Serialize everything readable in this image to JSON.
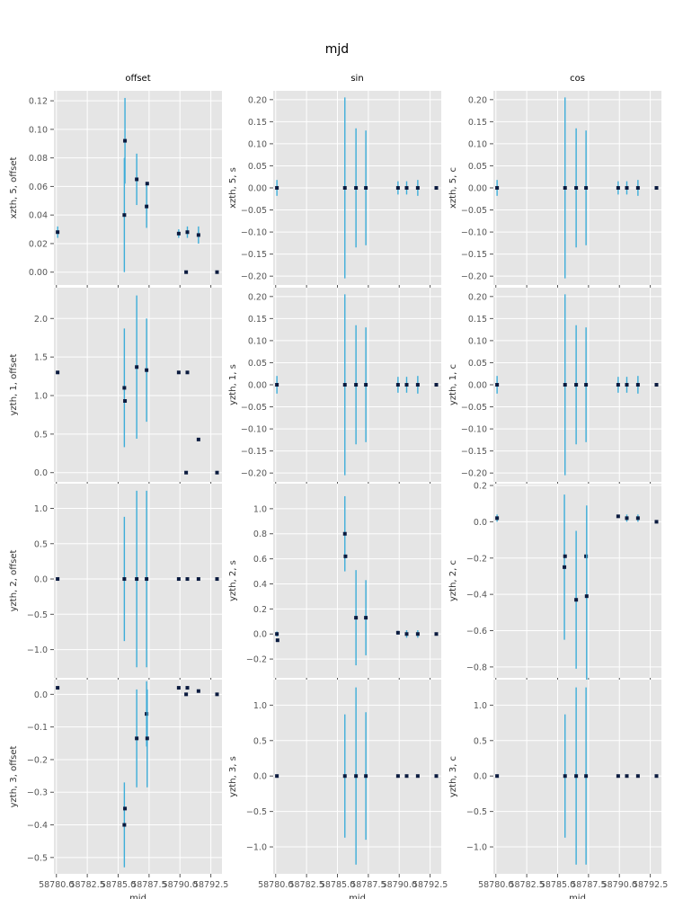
{
  "suptitle": "mjd",
  "column_titles": [
    "offset",
    "sin",
    "cos"
  ],
  "colors": {
    "panel_bg": "#E5E5E5",
    "grid": "#FFFFFF",
    "errorbar": "#3DADD9",
    "marker": "#0B1B3F",
    "tick_text": "#555555"
  },
  "chart_data": [
    {
      "type": "scatter",
      "title": "offset",
      "xlabel": "",
      "ylabel": "xzth, 5, offset",
      "xlim": [
        58779.8,
        58793.4
      ],
      "ylim": [
        -0.009,
        0.127
      ],
      "xticks": [
        58780,
        58782.5,
        58785,
        58787.5,
        58790,
        58792.5
      ],
      "xticklabels": [],
      "yticks": [
        0.0,
        0.02,
        0.04,
        0.06,
        0.08,
        0.1,
        0.12
      ],
      "yticklabels": [
        "0.00",
        "0.02",
        "0.04",
        "0.06",
        "0.08",
        "0.10",
        "0.12"
      ],
      "points": [
        {
          "x": 58780.1,
          "y": 0.028,
          "yerr": 0.004
        },
        {
          "x": 58785.5,
          "y": 0.04,
          "yerr": 0.04
        },
        {
          "x": 58785.55,
          "y": 0.092,
          "yerr": 0.03
        },
        {
          "x": 58786.5,
          "y": 0.065,
          "yerr": 0.018
        },
        {
          "x": 58787.3,
          "y": 0.046,
          "yerr": 0.015
        },
        {
          "x": 58787.35,
          "y": 0.062,
          "yerr": 0.0
        },
        {
          "x": 58789.9,
          "y": 0.027,
          "yerr": 0.003
        },
        {
          "x": 58790.6,
          "y": 0.028,
          "yerr": 0.004
        },
        {
          "x": 58790.5,
          "y": 0.0,
          "yerr": 0.0
        },
        {
          "x": 58791.5,
          "y": 0.026,
          "yerr": 0.006
        },
        {
          "x": 58793.0,
          "y": 0.0,
          "yerr": 0.0
        }
      ]
    },
    {
      "type": "scatter",
      "title": "sin",
      "xlabel": "",
      "ylabel": "xzth, 5, s",
      "xlim": [
        58779.8,
        58793.4
      ],
      "ylim": [
        -0.22,
        0.22
      ],
      "xticks": [
        58780,
        58782.5,
        58785,
        58787.5,
        58790,
        58792.5
      ],
      "xticklabels": [],
      "yticks": [
        -0.2,
        -0.15,
        -0.1,
        -0.05,
        0.0,
        0.05,
        0.1,
        0.15,
        0.2
      ],
      "yticklabels": [
        "−0.20",
        "−0.15",
        "−0.10",
        "−0.05",
        "0.00",
        "0.05",
        "0.10",
        "0.15",
        "0.20"
      ],
      "points": [
        {
          "x": 58780.1,
          "y": 0.0,
          "yerr": 0.018
        },
        {
          "x": 58785.6,
          "y": 0.0,
          "yerr": 0.205
        },
        {
          "x": 58786.5,
          "y": 0.0,
          "yerr": 0.135
        },
        {
          "x": 58787.3,
          "y": 0.0,
          "yerr": 0.13
        },
        {
          "x": 58789.9,
          "y": 0.0,
          "yerr": 0.015
        },
        {
          "x": 58790.6,
          "y": 0.0,
          "yerr": 0.015
        },
        {
          "x": 58791.5,
          "y": 0.0,
          "yerr": 0.018
        },
        {
          "x": 58793.0,
          "y": 0.0,
          "yerr": 0.0
        }
      ]
    },
    {
      "type": "scatter",
      "title": "cos",
      "xlabel": "",
      "ylabel": "xzth, 5, c",
      "xlim": [
        58779.8,
        58793.4
      ],
      "ylim": [
        -0.22,
        0.22
      ],
      "xticks": [
        58780,
        58782.5,
        58785,
        58787.5,
        58790,
        58792.5
      ],
      "xticklabels": [],
      "yticks": [
        -0.2,
        -0.15,
        -0.1,
        -0.05,
        0.0,
        0.05,
        0.1,
        0.15,
        0.2
      ],
      "yticklabels": [
        "−0.20",
        "−0.15",
        "−0.10",
        "−0.05",
        "0.00",
        "0.05",
        "0.10",
        "0.15",
        "0.20"
      ],
      "points": [
        {
          "x": 58780.1,
          "y": 0.0,
          "yerr": 0.018
        },
        {
          "x": 58785.6,
          "y": 0.0,
          "yerr": 0.205
        },
        {
          "x": 58786.5,
          "y": 0.0,
          "yerr": 0.135
        },
        {
          "x": 58787.3,
          "y": 0.0,
          "yerr": 0.13
        },
        {
          "x": 58789.9,
          "y": 0.0,
          "yerr": 0.015
        },
        {
          "x": 58790.6,
          "y": 0.0,
          "yerr": 0.015
        },
        {
          "x": 58791.5,
          "y": 0.0,
          "yerr": 0.018
        },
        {
          "x": 58793.0,
          "y": 0.0,
          "yerr": 0.0
        }
      ]
    },
    {
      "type": "scatter",
      "title": "",
      "xlabel": "",
      "ylabel": "yzth, 1, offset",
      "xlim": [
        58779.8,
        58793.4
      ],
      "ylim": [
        -0.12,
        2.4
      ],
      "xticks": [
        58780,
        58782.5,
        58785,
        58787.5,
        58790,
        58792.5
      ],
      "xticklabels": [],
      "yticks": [
        0.0,
        0.5,
        1.0,
        1.5,
        2.0
      ],
      "yticklabels": [
        "0.0",
        "0.5",
        "1.0",
        "1.5",
        "2.0"
      ],
      "points": [
        {
          "x": 58780.1,
          "y": 1.3,
          "yerr": 0.02
        },
        {
          "x": 58785.5,
          "y": 1.1,
          "yerr": 0.77
        },
        {
          "x": 58785.55,
          "y": 0.93,
          "yerr": 0.0
        },
        {
          "x": 58786.5,
          "y": 1.37,
          "yerr": 0.93
        },
        {
          "x": 58787.3,
          "y": 1.33,
          "yerr": 0.67
        },
        {
          "x": 58789.9,
          "y": 1.3,
          "yerr": 0.0
        },
        {
          "x": 58790.6,
          "y": 1.3,
          "yerr": 0.0
        },
        {
          "x": 58790.5,
          "y": 0.0,
          "yerr": 0.0
        },
        {
          "x": 58791.5,
          "y": 0.43,
          "yerr": 0.0
        },
        {
          "x": 58793.0,
          "y": 0.0,
          "yerr": 0.0
        }
      ]
    },
    {
      "type": "scatter",
      "title": "",
      "xlabel": "",
      "ylabel": "yzth, 1, s",
      "xlim": [
        58779.8,
        58793.4
      ],
      "ylim": [
        -0.22,
        0.22
      ],
      "xticks": [
        58780,
        58782.5,
        58785,
        58787.5,
        58790,
        58792.5
      ],
      "xticklabels": [],
      "yticks": [
        -0.2,
        -0.15,
        -0.1,
        -0.05,
        0.0,
        0.05,
        0.1,
        0.15,
        0.2
      ],
      "yticklabels": [
        "−0.20",
        "−0.15",
        "−0.10",
        "−0.05",
        "0.00",
        "0.05",
        "0.10",
        "0.15",
        "0.20"
      ],
      "points": [
        {
          "x": 58780.1,
          "y": 0.0,
          "yerr": 0.02
        },
        {
          "x": 58785.6,
          "y": 0.0,
          "yerr": 0.205
        },
        {
          "x": 58786.5,
          "y": 0.0,
          "yerr": 0.135
        },
        {
          "x": 58787.3,
          "y": 0.0,
          "yerr": 0.13
        },
        {
          "x": 58789.9,
          "y": 0.0,
          "yerr": 0.018
        },
        {
          "x": 58790.6,
          "y": 0.0,
          "yerr": 0.018
        },
        {
          "x": 58791.5,
          "y": 0.0,
          "yerr": 0.02
        },
        {
          "x": 58793.0,
          "y": 0.0,
          "yerr": 0.0
        }
      ]
    },
    {
      "type": "scatter",
      "title": "",
      "xlabel": "",
      "ylabel": "yzth, 1, c",
      "xlim": [
        58779.8,
        58793.4
      ],
      "ylim": [
        -0.22,
        0.22
      ],
      "xticks": [
        58780,
        58782.5,
        58785,
        58787.5,
        58790,
        58792.5
      ],
      "xticklabels": [],
      "yticks": [
        -0.2,
        -0.15,
        -0.1,
        -0.05,
        0.0,
        0.05,
        0.1,
        0.15,
        0.2
      ],
      "yticklabels": [
        "−0.20",
        "−0.15",
        "−0.10",
        "−0.05",
        "0.00",
        "0.05",
        "0.10",
        "0.15",
        "0.20"
      ],
      "points": [
        {
          "x": 58780.1,
          "y": 0.0,
          "yerr": 0.02
        },
        {
          "x": 58785.6,
          "y": 0.0,
          "yerr": 0.205
        },
        {
          "x": 58786.5,
          "y": 0.0,
          "yerr": 0.135
        },
        {
          "x": 58787.3,
          "y": 0.0,
          "yerr": 0.13
        },
        {
          "x": 58789.9,
          "y": 0.0,
          "yerr": 0.018
        },
        {
          "x": 58790.6,
          "y": 0.0,
          "yerr": 0.018
        },
        {
          "x": 58791.5,
          "y": 0.0,
          "yerr": 0.02
        },
        {
          "x": 58793.0,
          "y": 0.0,
          "yerr": 0.0
        }
      ]
    },
    {
      "type": "scatter",
      "title": "",
      "xlabel": "",
      "ylabel": "yzth, 2, offset",
      "xlim": [
        58779.8,
        58793.4
      ],
      "ylim": [
        -1.4,
        1.35
      ],
      "xticks": [
        58780,
        58782.5,
        58785,
        58787.5,
        58790,
        58792.5
      ],
      "xticklabels": [],
      "yticks": [
        -1.0,
        -0.5,
        0.0,
        0.5,
        1.0
      ],
      "yticklabels": [
        "−1.0",
        "−0.5",
        "0.0",
        "0.5",
        "1.0"
      ],
      "points": [
        {
          "x": 58780.1,
          "y": 0.0,
          "yerr": 0.0
        },
        {
          "x": 58785.5,
          "y": 0.0,
          "yerr": 0.88
        },
        {
          "x": 58786.5,
          "y": 0.0,
          "yerr": 1.25
        },
        {
          "x": 58787.3,
          "y": 0.0,
          "yerr": 1.25
        },
        {
          "x": 58789.9,
          "y": 0.0,
          "yerr": 0.0
        },
        {
          "x": 58790.6,
          "y": 0.0,
          "yerr": 0.0
        },
        {
          "x": 58791.5,
          "y": 0.0,
          "yerr": 0.0
        },
        {
          "x": 58793.0,
          "y": 0.0,
          "yerr": 0.0
        }
      ]
    },
    {
      "type": "scatter",
      "title": "",
      "xlabel": "",
      "ylabel": "yzth, 2, s",
      "xlim": [
        58779.8,
        58793.4
      ],
      "ylim": [
        -0.35,
        1.2
      ],
      "xticks": [
        58780,
        58782.5,
        58785,
        58787.5,
        58790,
        58792.5
      ],
      "xticklabels": [],
      "yticks": [
        -0.2,
        0.0,
        0.2,
        0.4,
        0.6,
        0.8,
        1.0
      ],
      "yticklabels": [
        "−0.2",
        "0.0",
        "0.2",
        "0.4",
        "0.6",
        "0.8",
        "1.0"
      ],
      "points": [
        {
          "x": 58780.1,
          "y": 0.0,
          "yerr": 0.02
        },
        {
          "x": 58780.15,
          "y": -0.05,
          "yerr": 0.0
        },
        {
          "x": 58785.6,
          "y": 0.8,
          "yerr": 0.3
        },
        {
          "x": 58785.65,
          "y": 0.62,
          "yerr": 0.0
        },
        {
          "x": 58786.5,
          "y": 0.13,
          "yerr": 0.38
        },
        {
          "x": 58787.3,
          "y": 0.13,
          "yerr": 0.3
        },
        {
          "x": 58789.9,
          "y": 0.01,
          "yerr": 0.015
        },
        {
          "x": 58790.6,
          "y": 0.0,
          "yerr": 0.03
        },
        {
          "x": 58791.5,
          "y": 0.0,
          "yerr": 0.03
        },
        {
          "x": 58793.0,
          "y": 0.0,
          "yerr": 0.0
        }
      ]
    },
    {
      "type": "scatter",
      "title": "",
      "xlabel": "",
      "ylabel": "yzth, 2, c",
      "xlim": [
        58779.8,
        58793.4
      ],
      "ylim": [
        -0.86,
        0.21
      ],
      "xticks": [
        58780,
        58782.5,
        58785,
        58787.5,
        58790,
        58792.5
      ],
      "xticklabels": [],
      "yticks": [
        -0.8,
        -0.6,
        -0.4,
        -0.2,
        0.0,
        0.2
      ],
      "yticklabels": [
        "−0.8",
        "−0.6",
        "−0.4",
        "−0.2",
        "0.0",
        "0.2"
      ],
      "points": [
        {
          "x": 58780.1,
          "y": 0.02,
          "yerr": 0.02
        },
        {
          "x": 58785.55,
          "y": -0.25,
          "yerr": 0.4
        },
        {
          "x": 58785.6,
          "y": -0.19,
          "yerr": 0.0
        },
        {
          "x": 58786.5,
          "y": -0.43,
          "yerr": 0.38
        },
        {
          "x": 58787.3,
          "y": -0.19,
          "yerr": 0.0
        },
        {
          "x": 58787.35,
          "y": -0.41,
          "yerr": 0.5
        },
        {
          "x": 58789.9,
          "y": 0.03,
          "yerr": 0.0
        },
        {
          "x": 58790.6,
          "y": 0.02,
          "yerr": 0.02
        },
        {
          "x": 58791.5,
          "y": 0.02,
          "yerr": 0.02
        },
        {
          "x": 58793.0,
          "y": 0.0,
          "yerr": 0.0
        }
      ]
    },
    {
      "type": "scatter",
      "title": "",
      "xlabel": "mjd",
      "ylabel": "yzth, 3, offset",
      "xlim": [
        58779.8,
        58793.4
      ],
      "ylim": [
        -0.55,
        0.045
      ],
      "xticks": [
        58780,
        58782.5,
        58785,
        58787.5,
        58790,
        58792.5
      ],
      "xticklabels": [
        "58780.0",
        "58782.5",
        "58785.0",
        "58787.5",
        "58790.0",
        "58792.5"
      ],
      "yticks": [
        -0.5,
        -0.4,
        -0.3,
        -0.2,
        -0.1,
        0.0
      ],
      "yticklabels": [
        "−0.5",
        "−0.4",
        "−0.3",
        "−0.2",
        "−0.1",
        "0.0"
      ],
      "points": [
        {
          "x": 58780.1,
          "y": 0.02,
          "yerr": 0.0
        },
        {
          "x": 58785.5,
          "y": -0.4,
          "yerr": 0.13
        },
        {
          "x": 58785.55,
          "y": -0.35,
          "yerr": 0.0
        },
        {
          "x": 58786.5,
          "y": -0.135,
          "yerr": 0.15
        },
        {
          "x": 58787.3,
          "y": -0.06,
          "yerr": 0.1
        },
        {
          "x": 58787.35,
          "y": -0.135,
          "yerr": 0.15
        },
        {
          "x": 58789.9,
          "y": 0.02,
          "yerr": 0.0
        },
        {
          "x": 58790.6,
          "y": 0.02,
          "yerr": 0.0
        },
        {
          "x": 58790.5,
          "y": 0.0,
          "yerr": 0.0
        },
        {
          "x": 58791.5,
          "y": 0.01,
          "yerr": 0.0
        },
        {
          "x": 58793.0,
          "y": 0.0,
          "yerr": 0.0
        }
      ]
    },
    {
      "type": "scatter",
      "title": "",
      "xlabel": "mjd",
      "ylabel": "yzth, 3, s",
      "xlim": [
        58779.8,
        58793.4
      ],
      "ylim": [
        -1.38,
        1.36
      ],
      "xticks": [
        58780,
        58782.5,
        58785,
        58787.5,
        58790,
        58792.5
      ],
      "xticklabels": [
        "58780.0",
        "58782.5",
        "58785.0",
        "58787.5",
        "58790.0",
        "58792.5"
      ],
      "yticks": [
        -1.0,
        -0.5,
        0.0,
        0.5,
        1.0
      ],
      "yticklabels": [
        "−1.0",
        "−0.5",
        "0.0",
        "0.5",
        "1.0"
      ],
      "points": [
        {
          "x": 58780.1,
          "y": 0.0,
          "yerr": 0.0
        },
        {
          "x": 58785.6,
          "y": 0.0,
          "yerr": 0.87
        },
        {
          "x": 58786.5,
          "y": 0.0,
          "yerr": 1.25
        },
        {
          "x": 58787.3,
          "y": 0.0,
          "yerr": 0.9
        },
        {
          "x": 58789.9,
          "y": 0.0,
          "yerr": 0.0
        },
        {
          "x": 58790.6,
          "y": 0.0,
          "yerr": 0.0
        },
        {
          "x": 58791.5,
          "y": 0.0,
          "yerr": 0.0
        },
        {
          "x": 58793.0,
          "y": 0.0,
          "yerr": 0.0
        }
      ]
    },
    {
      "type": "scatter",
      "title": "",
      "xlabel": "mjd",
      "ylabel": "yzth, 3, c",
      "xlim": [
        58779.8,
        58793.4
      ],
      "ylim": [
        -1.38,
        1.36
      ],
      "xticks": [
        58780,
        58782.5,
        58785,
        58787.5,
        58790,
        58792.5
      ],
      "xticklabels": [
        "58780.0",
        "58782.5",
        "58785.0",
        "58787.5",
        "58790.0",
        "58792.5"
      ],
      "yticks": [
        -1.0,
        -0.5,
        0.0,
        0.5,
        1.0
      ],
      "yticklabels": [
        "−1.0",
        "−0.5",
        "0.0",
        "0.5",
        "1.0"
      ],
      "points": [
        {
          "x": 58780.1,
          "y": 0.0,
          "yerr": 0.0
        },
        {
          "x": 58785.6,
          "y": 0.0,
          "yerr": 0.87
        },
        {
          "x": 58786.5,
          "y": 0.0,
          "yerr": 1.25
        },
        {
          "x": 58787.3,
          "y": 0.0,
          "yerr": 1.25
        },
        {
          "x": 58789.9,
          "y": 0.0,
          "yerr": 0.0
        },
        {
          "x": 58790.6,
          "y": 0.0,
          "yerr": 0.0
        },
        {
          "x": 58791.5,
          "y": 0.0,
          "yerr": 0.0
        },
        {
          "x": 58793.0,
          "y": 0.0,
          "yerr": 0.0
        }
      ]
    }
  ]
}
